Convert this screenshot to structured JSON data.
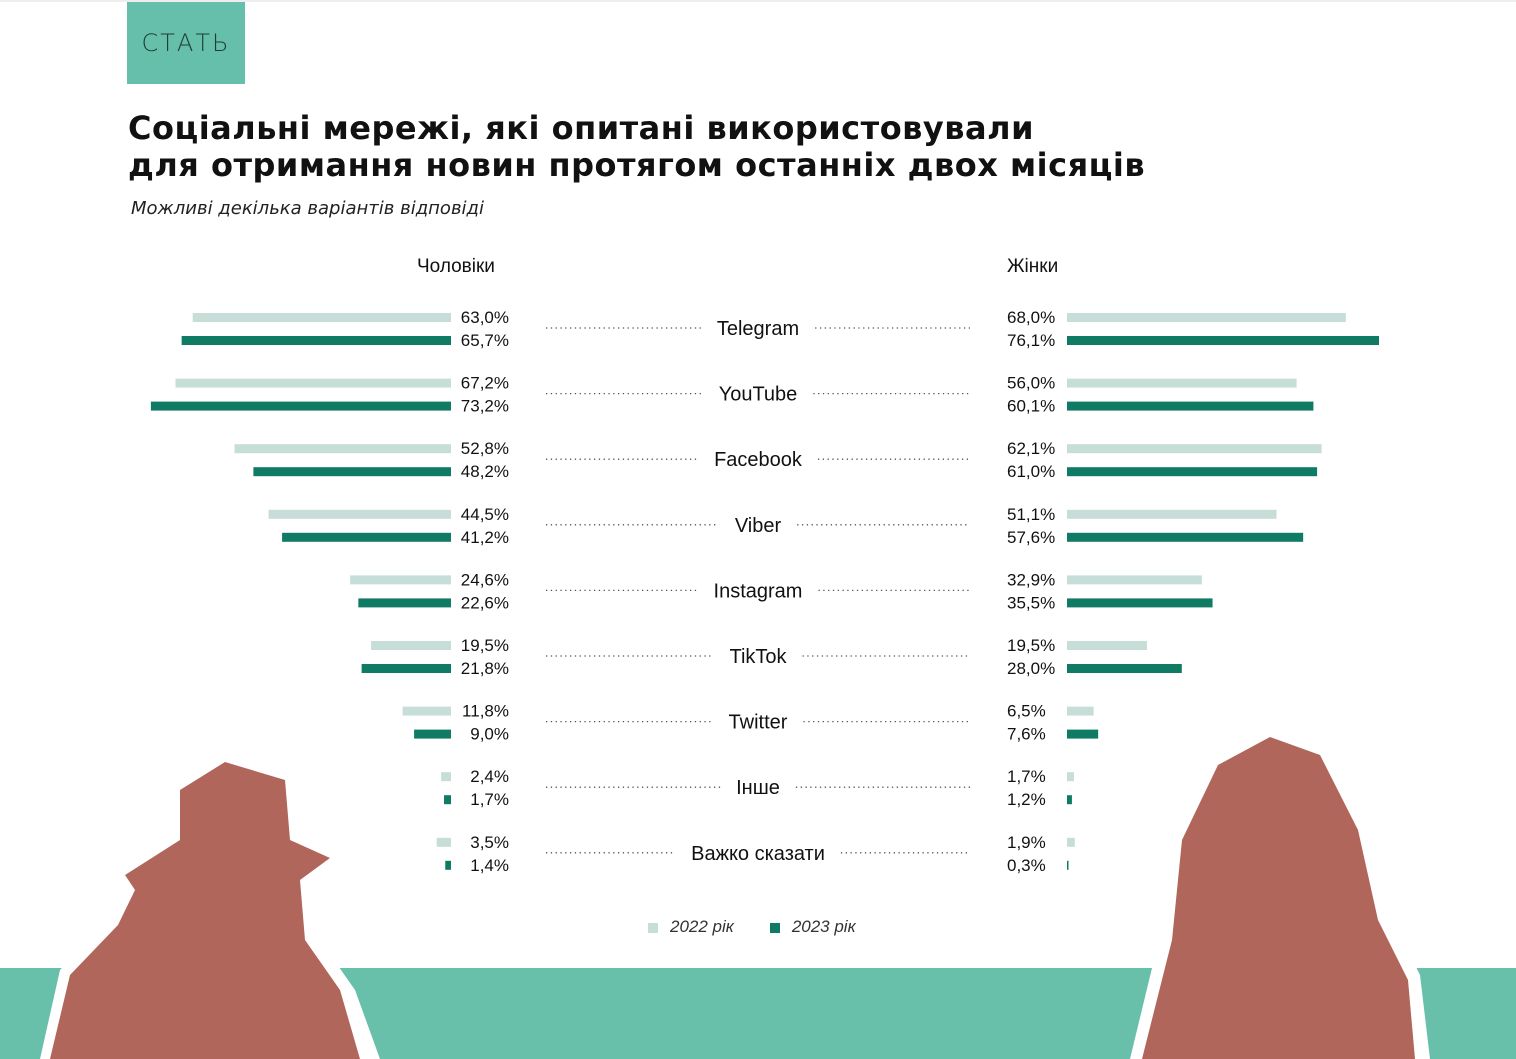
{
  "tag": "СТАТЬ",
  "title_line1": "Соціальні мережі, які опитані використовували",
  "title_line2": "для отримання новин протягом останніх двох місяців",
  "subtitle": "Можливі декілька варіантів відповіді",
  "colors": {
    "y2022": "#c6ded7",
    "y2023": "#0f7b64",
    "band": "#69c0aa",
    "silhouette": "#b0665a"
  },
  "chart_data": {
    "type": "bar",
    "orientation": "horizontal-butterfly",
    "title": "Соціальні мережі, які опитані використовували для отримання новин протягом останніх двох місяців",
    "subtitle": "Можливі декілька варіантів відповіді",
    "groups": [
      "Чоловіки",
      "Жінки"
    ],
    "categories": [
      "Telegram",
      "YouTube",
      "Facebook",
      "Viber",
      "Instagram",
      "TikTok",
      "Twitter",
      "Інше",
      "Важко сказати"
    ],
    "legend": [
      "2022 рік",
      "2023 рік"
    ],
    "legend_placement": "bottom",
    "men": {
      "y2022": [
        63.0,
        67.2,
        52.8,
        44.5,
        24.6,
        19.5,
        11.8,
        2.4,
        3.5
      ],
      "y2023": [
        65.7,
        73.2,
        48.2,
        41.2,
        22.6,
        21.8,
        9.0,
        1.7,
        1.4
      ],
      "labels2022": [
        "63,0%",
        "67,2%",
        "52,8%",
        "44,5%",
        "24,6%",
        "19,5%",
        "11,8%",
        "2,4%",
        "3,5%"
      ],
      "labels2023": [
        "65,7%",
        "73,2%",
        "48,2%",
        "41,2%",
        "22,6%",
        "21,8%",
        "9,0%",
        "1,7%",
        "1,4%"
      ]
    },
    "women": {
      "y2022": [
        68.0,
        56.0,
        62.1,
        51.1,
        32.9,
        19.5,
        6.5,
        1.7,
        1.9
      ],
      "y2023": [
        76.1,
        60.1,
        61.0,
        57.6,
        35.5,
        28.0,
        7.6,
        1.2,
        0.3
      ],
      "labels2022": [
        "68,0%",
        "56,0%",
        "62,1%",
        "51,1%",
        "32,9%",
        "19,5%",
        "6,5%",
        "1,7%",
        "1,9%"
      ],
      "labels2023": [
        "76,1%",
        "60,1%",
        "61,0%",
        "57,6%",
        "35,5%",
        "28,0%",
        "7,6%",
        "1,2%",
        "0,3%"
      ]
    },
    "unit": "%",
    "grid": false
  }
}
